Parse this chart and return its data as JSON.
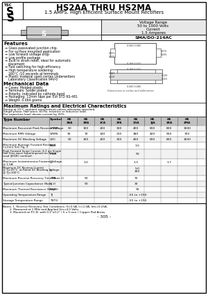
{
  "title1": "HS2AA THRU HS2MA",
  "title2": "1.5 AMPS. High Efficient Surface Mount Rectifiers",
  "voltage_range": "Voltage Range",
  "voltage_val": "50 to 1000 Volts",
  "current_label": "Current",
  "current_val": "1.5 Amperes",
  "package": "SMA/DO-214AC",
  "features_title": "Features",
  "features": [
    "Glass passivated junction chip.",
    "For surface mounted application",
    "Low forward voltage drop",
    "Low profile package",
    "Built in strain relief, ideal for automatic\nplacement",
    "Fast switching for high efficiency",
    "High temperature soldering:\n260°C /10 seconds at terminals",
    "Plastic material used carries Underwriters\nLaboratory Classification 94V-0"
  ],
  "mech_title": "Mechanical Data",
  "mech": [
    "Cases: Molded plastic",
    "Terminals: Solder plated",
    "Polarity: Indicated by cathode band",
    "Packaging: 12mm tape per EIA STD RS-481",
    "Weight: 0.064 grams"
  ],
  "ratings_title": "Maximum Ratings and Electrical Characteristics",
  "ratings_note1": "Rating at 25°C ambient temperature unless otherwise specified.",
  "ratings_note2": "Single phase, Half wave, 60 Hz, resistive or Inductive load.",
  "ratings_note3": "For capacitive load, derate current by 20%.",
  "col_headers": [
    "HS\n2AA",
    "HS\n2BA",
    "HS\n2CA",
    "HS\n2FA",
    "HS\n2GA",
    "HS\n2JA",
    "HS\n2KA",
    "HS\n2MA"
  ],
  "table_rows": [
    {
      "label": "Maximum Recurrent Peak Reverse Voltage",
      "sym": "VRRM",
      "vals": [
        "50",
        "100",
        "200",
        "300",
        "400",
        "600",
        "800",
        "1000"
      ],
      "unit": "V"
    },
    {
      "label": "Maximum RMS Voltage",
      "sym": "VRMS",
      "vals": [
        "35",
        "70",
        "140",
        "210",
        "280",
        "420",
        "560",
        "700"
      ],
      "unit": "V"
    },
    {
      "label": "Maximum DC Blocking Voltage",
      "sym": "VDC",
      "vals": [
        "50",
        "100",
        "200",
        "300",
        "400",
        "600",
        "800",
        "1000"
      ],
      "unit": "V"
    },
    {
      "label": "Maximum Average Forward Rectified\nCurrent See Fig. 2",
      "sym": "IAVE",
      "vals": [
        "",
        "",
        "",
        "1.5",
        "",
        "",
        "",
        ""
      ],
      "unit": "A"
    },
    {
      "label": "Peak Forward Surge Current, 8.3 ms Single\nHalf Sine-wave Superimposed on Rated\nLoad (JEDEC method).",
      "sym": "IFSM",
      "vals": [
        "",
        "",
        "",
        "50",
        "",
        "",
        "",
        ""
      ],
      "unit": "A"
    },
    {
      "label": "Maximum Instantaneous Forward Voltage\n@ 1.5A",
      "sym": "VF",
      "vals": [
        "",
        "1.0",
        "",
        "",
        "1.3",
        "",
        "1.7",
        ""
      ],
      "unit": "V"
    },
    {
      "label": "Maximum DC Reverse Current\n@ TJ=25°C  at Rated DC Blocking Voltage\n@ TJ=100°C",
      "sym": "IR",
      "vals": [
        "",
        "",
        "",
        "5.0\n100",
        "",
        "",
        "",
        ""
      ],
      "unit": "μA\nμA"
    },
    {
      "label": "Maximum Reverse Recovery Time (Note 1)",
      "sym": "TRR",
      "vals": [
        "",
        "50",
        "",
        "",
        "75",
        "",
        "",
        ""
      ],
      "unit": "nS"
    },
    {
      "label": "Typical Junction Capacitance (Note 2)",
      "sym": "CJ",
      "vals": [
        "",
        "50",
        "",
        "",
        "30",
        "",
        "",
        ""
      ],
      "unit": "pF"
    },
    {
      "label": "Maximum Thermal Resistance (Note 3)",
      "sym": "RθJA",
      "vals": [
        "",
        "",
        "",
        "90",
        "",
        "",
        "",
        ""
      ],
      "unit": "°C/W"
    },
    {
      "label": "Operating Temperature Range",
      "sym": "TJ",
      "vals": [
        "",
        "",
        "-55 to +150",
        "",
        "",
        "",
        "",
        ""
      ],
      "unit": "°C"
    },
    {
      "label": "Storage Temperature Range",
      "sym": "TSTG",
      "vals": [
        "",
        "",
        "-55 to +150",
        "",
        "",
        "",
        "",
        ""
      ],
      "unit": "°C"
    }
  ],
  "notes": [
    "Notes: 1. Reverse Recovery Test Conditions: If=0.5A, Ir=1.0A, Irm=0.25A.",
    "        2. Measured at 1 MHz and Applied Vm=4.0 Volts.",
    "        3. Mounted on P.C.B. with 0.2\"x0.2\" ( 5 x 5 mm ) Copper Pad Areas."
  ],
  "page_num": "- 305 -",
  "bg_color": "#ffffff"
}
